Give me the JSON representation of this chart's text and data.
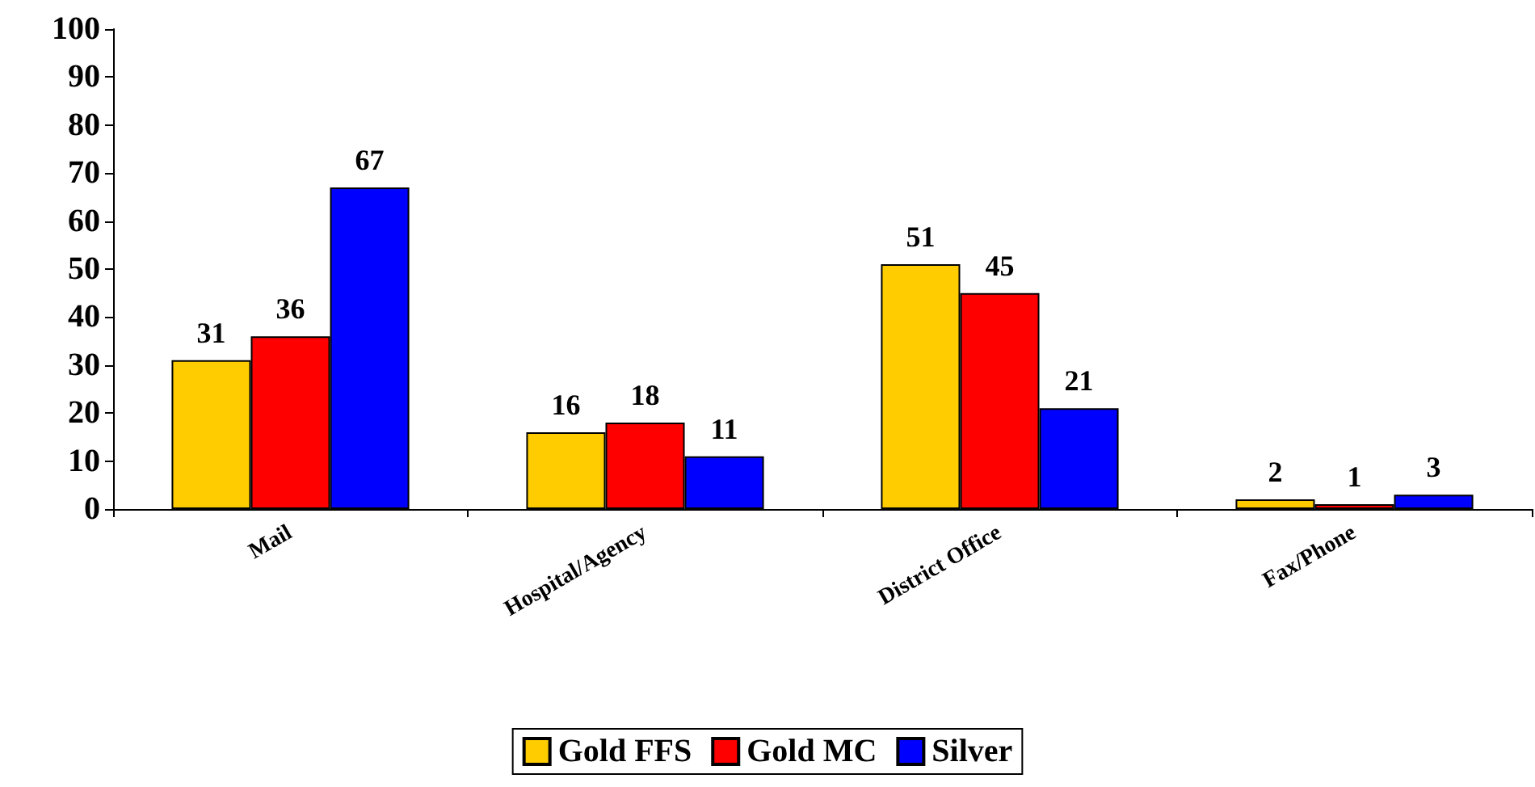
{
  "chart_data": {
    "type": "bar",
    "categories": [
      "Mail",
      "Hospital/Agency",
      "District Office",
      "Fax/Phone"
    ],
    "series": [
      {
        "name": "Gold FFS",
        "color": "#ffcc00",
        "values": [
          31,
          16,
          51,
          2
        ]
      },
      {
        "name": "Gold MC",
        "color": "#ff0000",
        "values": [
          36,
          18,
          45,
          1
        ]
      },
      {
        "name": "Silver",
        "color": "#0000ff",
        "values": [
          67,
          11,
          21,
          3
        ]
      }
    ],
    "ylim": [
      0,
      100
    ],
    "yticks": [
      0,
      10,
      20,
      30,
      40,
      50,
      60,
      70,
      80,
      90,
      100
    ],
    "grid": false,
    "legend": "bottom",
    "data_labels": true
  }
}
